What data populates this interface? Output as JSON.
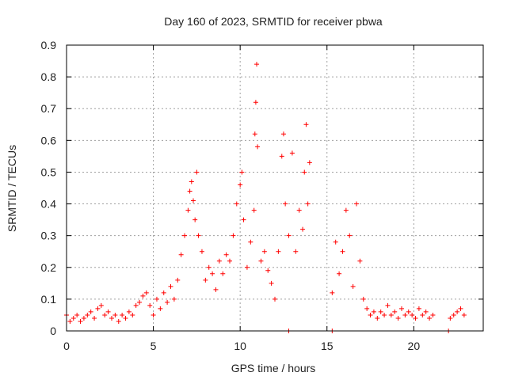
{
  "chart_data": {
    "type": "scatter",
    "title": "Day 160 of 2023, SRMTID for receiver pbwa",
    "xlabel": "GPS time / hours",
    "ylabel": "SRMTID / TECUs",
    "xlim": [
      0,
      24
    ],
    "ylim": [
      0,
      0.9
    ],
    "xticks": [
      0,
      5,
      10,
      15,
      20
    ],
    "xtick_labels": [
      "0",
      "5",
      "10",
      "15",
      "20"
    ],
    "yticks": [
      0,
      0.1,
      0.2,
      0.3,
      0.4,
      0.5,
      0.6,
      0.7,
      0.8,
      0.9
    ],
    "ytick_labels": [
      "0",
      "0.1",
      "0.2",
      "0.3",
      "0.4",
      "0.5",
      "0.6",
      "0.7",
      "0.8",
      "0.9"
    ],
    "grid": true,
    "marker": "+",
    "color": "#ff0000",
    "series": [
      {
        "name": "pbwa",
        "x": [
          0.0,
          0.2,
          0.4,
          0.6,
          0.8,
          1.0,
          1.2,
          1.4,
          1.6,
          1.8,
          2.0,
          2.2,
          2.4,
          2.6,
          2.8,
          3.0,
          3.2,
          3.4,
          3.6,
          3.8,
          4.0,
          4.2,
          4.4,
          4.6,
          4.8,
          5.0,
          5.2,
          5.4,
          5.6,
          5.8,
          6.0,
          6.2,
          6.4,
          6.6,
          6.8,
          7.0,
          7.1,
          7.2,
          7.3,
          7.4,
          7.5,
          7.6,
          7.8,
          8.0,
          8.2,
          8.4,
          8.6,
          8.8,
          9.0,
          9.2,
          9.4,
          9.6,
          9.8,
          10.0,
          10.1,
          10.2,
          10.4,
          10.6,
          10.8,
          10.85,
          10.9,
          10.95,
          11.0,
          11.2,
          11.4,
          11.6,
          11.8,
          12.0,
          12.2,
          12.4,
          12.5,
          12.6,
          12.8,
          13.0,
          13.2,
          13.4,
          13.6,
          13.7,
          13.8,
          13.9,
          14.0,
          15.3,
          15.5,
          15.7,
          15.9,
          16.1,
          16.3,
          16.5,
          16.7,
          16.9,
          17.1,
          17.3,
          17.5,
          17.7,
          17.9,
          18.1,
          18.3,
          18.5,
          18.7,
          18.9,
          19.1,
          19.3,
          19.5,
          19.7,
          19.9,
          20.1,
          20.3,
          20.5,
          20.7,
          20.9,
          21.1,
          22.1,
          22.3,
          22.5,
          22.7,
          22.9,
          12.8,
          15.3,
          22.0
        ],
        "y": [
          0.05,
          0.03,
          0.04,
          0.05,
          0.03,
          0.04,
          0.05,
          0.06,
          0.04,
          0.07,
          0.08,
          0.05,
          0.06,
          0.04,
          0.05,
          0.03,
          0.05,
          0.04,
          0.06,
          0.05,
          0.08,
          0.09,
          0.11,
          0.12,
          0.08,
          0.05,
          0.1,
          0.07,
          0.12,
          0.09,
          0.14,
          0.1,
          0.16,
          0.24,
          0.3,
          0.38,
          0.44,
          0.47,
          0.41,
          0.35,
          0.5,
          0.3,
          0.25,
          0.16,
          0.2,
          0.18,
          0.13,
          0.22,
          0.18,
          0.24,
          0.22,
          0.3,
          0.4,
          0.46,
          0.5,
          0.35,
          0.2,
          0.28,
          0.38,
          0.62,
          0.72,
          0.84,
          0.58,
          0.22,
          0.25,
          0.19,
          0.15,
          0.1,
          0.25,
          0.55,
          0.62,
          0.4,
          0.3,
          0.56,
          0.25,
          0.38,
          0.32,
          0.5,
          0.65,
          0.4,
          0.53,
          0.12,
          0.28,
          0.18,
          0.25,
          0.38,
          0.3,
          0.14,
          0.4,
          0.22,
          0.1,
          0.07,
          0.05,
          0.06,
          0.04,
          0.06,
          0.05,
          0.08,
          0.05,
          0.06,
          0.04,
          0.07,
          0.05,
          0.06,
          0.05,
          0.04,
          0.07,
          0.05,
          0.06,
          0.04,
          0.05,
          0.04,
          0.05,
          0.06,
          0.07,
          0.05,
          0.0,
          0.0,
          0.0
        ]
      }
    ]
  }
}
